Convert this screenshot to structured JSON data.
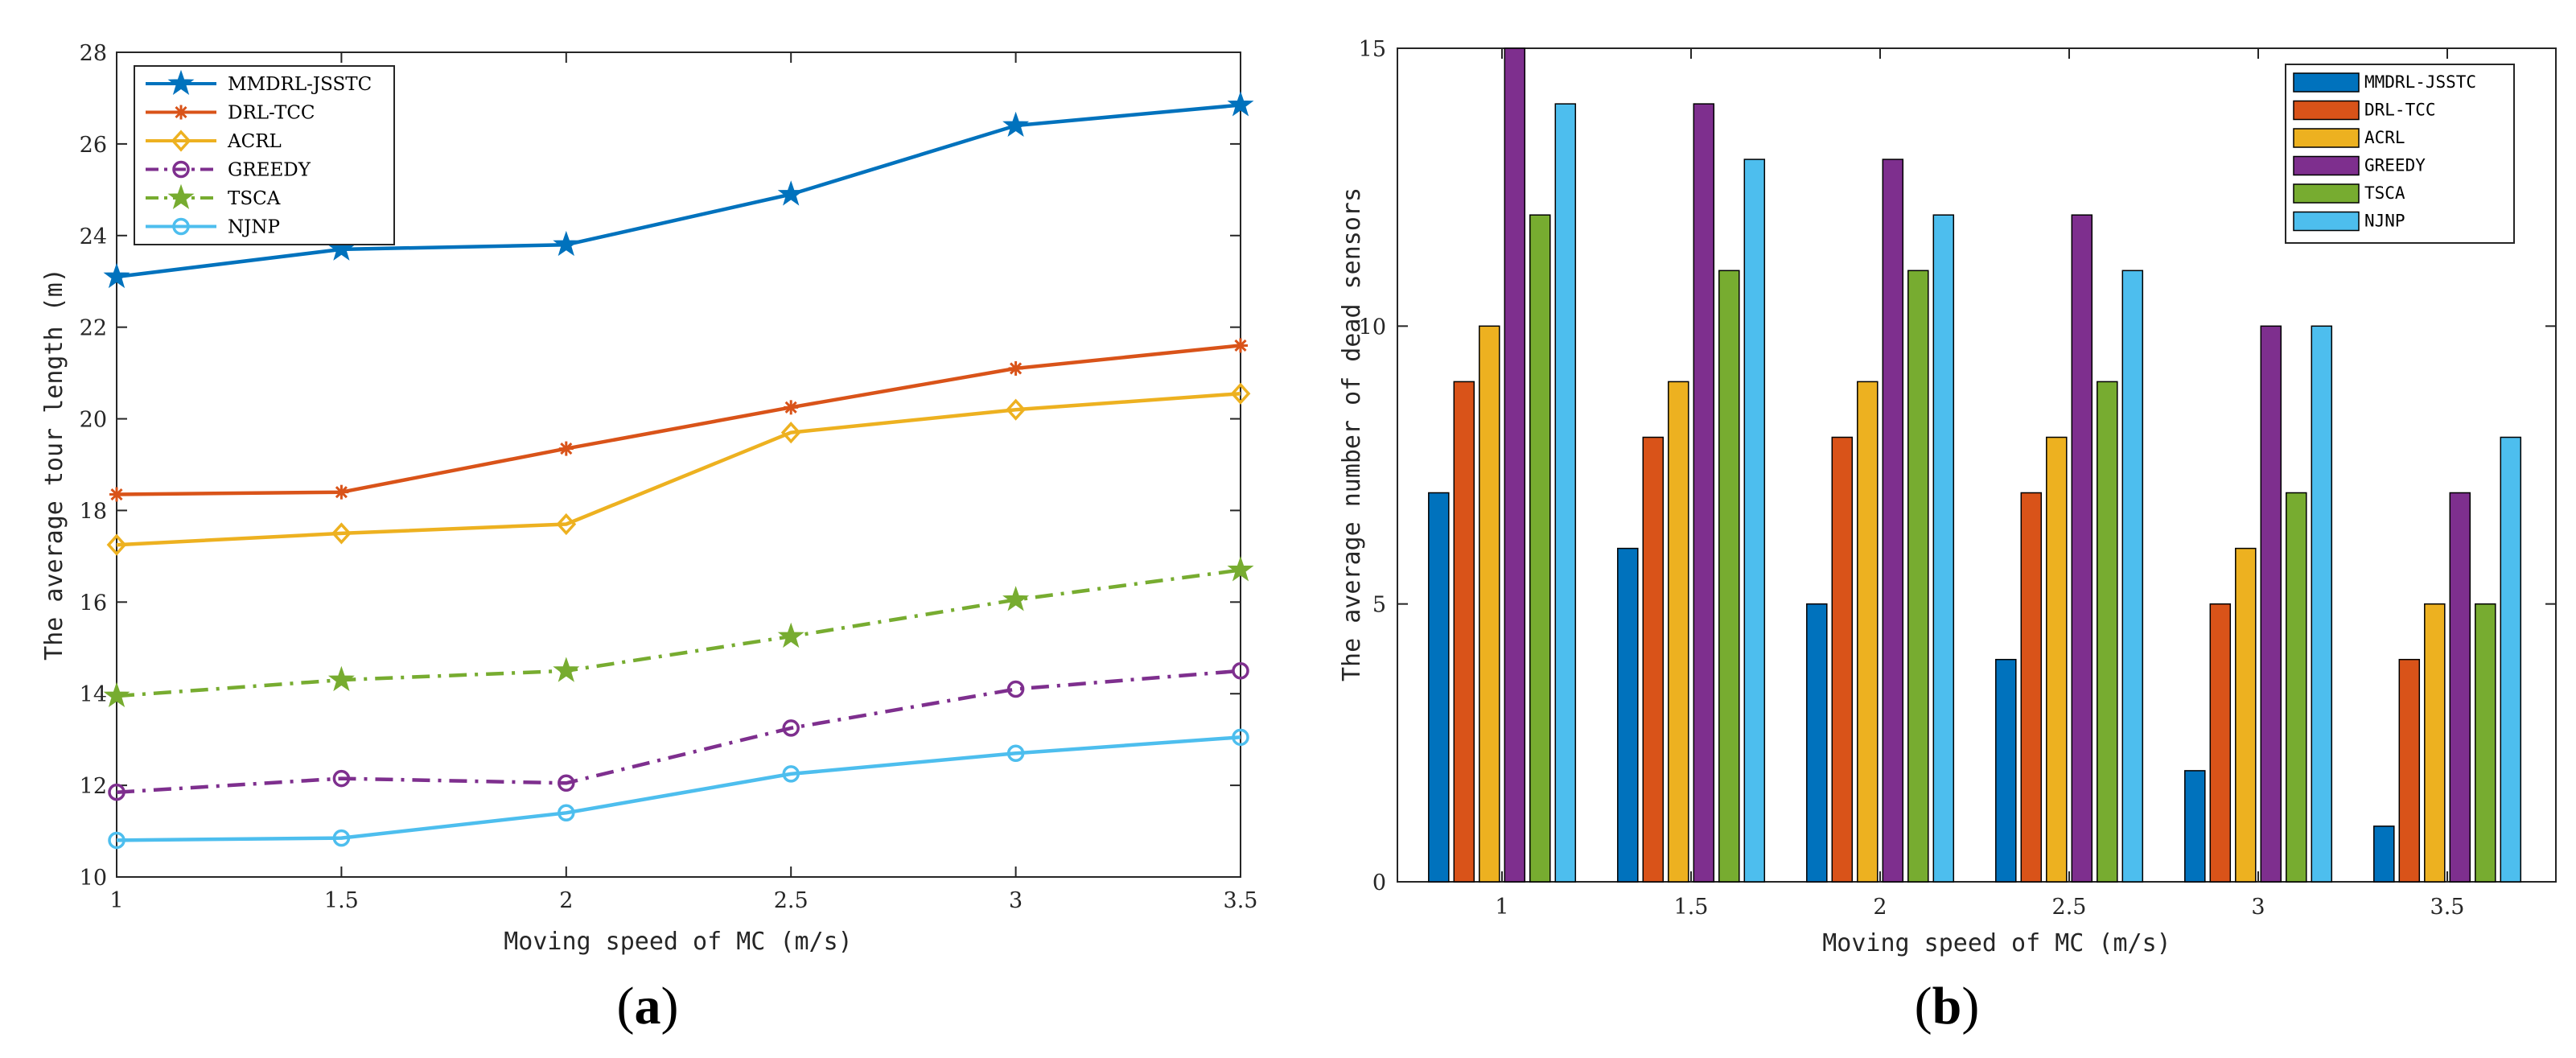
{
  "chart_data": [
    {
      "type": "line",
      "panel_label": "a",
      "title": "",
      "xlabel": "Moving speed of MC (m/s)",
      "ylabel": "The average tour length (m)",
      "x": [
        1,
        1.5,
        2,
        2.5,
        3,
        3.5
      ],
      "x_tick_labels": [
        "1",
        "1.5",
        "2",
        "2.5",
        "3",
        "3.5"
      ],
      "xlim": [
        1,
        3.5
      ],
      "ylim": [
        10,
        28
      ],
      "y_ticks": [
        10,
        12,
        14,
        16,
        18,
        20,
        22,
        24,
        26,
        28
      ],
      "grid": false,
      "legend_position": "top-left",
      "series": [
        {
          "name": "MMDRL-JSSTC",
          "color": "#0072BD",
          "marker": "star",
          "dash": "solid",
          "values": [
            23.1,
            23.7,
            23.8,
            24.9,
            26.4,
            26.85
          ]
        },
        {
          "name": "DRL-TCC",
          "color": "#D95319",
          "marker": "asterisk",
          "dash": "solid",
          "values": [
            18.35,
            18.4,
            19.35,
            20.25,
            21.1,
            21.6
          ]
        },
        {
          "name": "ACRL",
          "color": "#EDB120",
          "marker": "diamond",
          "dash": "solid",
          "values": [
            17.25,
            17.5,
            17.7,
            19.7,
            20.2,
            20.55
          ]
        },
        {
          "name": "GREEDY",
          "color": "#7E2F8E",
          "marker": "circle",
          "dash": "dashdot",
          "values": [
            11.85,
            12.15,
            12.05,
            13.25,
            14.1,
            14.5
          ]
        },
        {
          "name": "TSCA",
          "color": "#77AC30",
          "marker": "star",
          "dash": "dashdot",
          "values": [
            13.95,
            14.3,
            14.5,
            15.25,
            16.05,
            16.7
          ]
        },
        {
          "name": "NJNP",
          "color": "#4DBEEE",
          "marker": "circle",
          "dash": "solid",
          "values": [
            10.8,
            10.85,
            11.4,
            12.25,
            12.7,
            13.05
          ]
        }
      ]
    },
    {
      "type": "bar",
      "panel_label": "b",
      "title": "",
      "xlabel": "Moving speed of MC (m/s)",
      "ylabel": "The average number of dead sensors",
      "categories": [
        "1",
        "1.5",
        "2",
        "2.5",
        "3",
        "3.5"
      ],
      "ylim": [
        0,
        15
      ],
      "y_ticks": [
        0,
        5,
        10,
        15
      ],
      "grid": false,
      "legend_position": "top-right",
      "series": [
        {
          "name": "MMDRL-JSSTC",
          "color": "#0072BD",
          "values": [
            7,
            6,
            5,
            4,
            2,
            1
          ]
        },
        {
          "name": "DRL-TCC",
          "color": "#D95319",
          "values": [
            9,
            8,
            8,
            7,
            5,
            4
          ]
        },
        {
          "name": "ACRL",
          "color": "#EDB120",
          "values": [
            10,
            9,
            9,
            8,
            6,
            5
          ]
        },
        {
          "name": "GREEDY",
          "color": "#7E2F8E",
          "values": [
            15,
            14,
            13,
            12,
            10,
            7
          ]
        },
        {
          "name": "TSCA",
          "color": "#77AC30",
          "values": [
            12,
            11,
            11,
            9,
            7,
            5
          ]
        },
        {
          "name": "NJNP",
          "color": "#4DBEEE",
          "values": [
            14,
            13,
            12,
            11,
            10,
            8
          ]
        }
      ]
    }
  ]
}
